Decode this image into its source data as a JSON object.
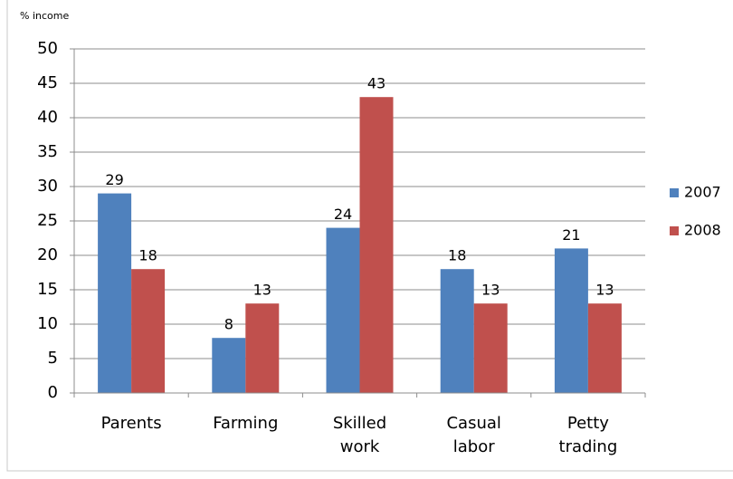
{
  "chart_data": {
    "type": "bar",
    "y_axis_label": "% income",
    "categories": [
      "Parents",
      "Farming",
      "Skilled work",
      "Casual labor",
      "Petty trading"
    ],
    "series": [
      {
        "name": "2007",
        "color": "#4f81bd",
        "values": [
          29,
          8,
          24,
          18,
          21
        ]
      },
      {
        "name": "2008",
        "color": "#c0504d",
        "values": [
          18,
          13,
          43,
          13,
          13
        ]
      }
    ],
    "ylim": [
      0,
      50
    ],
    "yticks": [
      0,
      5,
      10,
      15,
      20,
      25,
      30,
      35,
      40,
      45,
      50
    ],
    "grid": true,
    "legend": "right"
  }
}
